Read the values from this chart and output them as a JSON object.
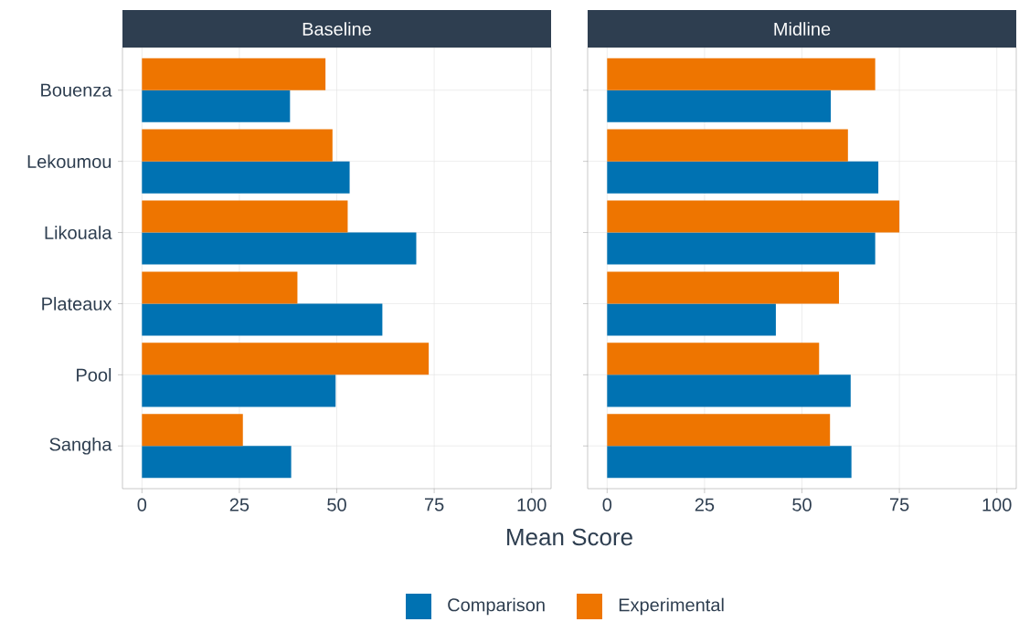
{
  "chart_data": [
    {
      "type": "bar",
      "orientation": "horizontal",
      "title": "Baseline",
      "xlabel": "Mean Score",
      "categories": [
        "Bouenza",
        "Lekoumou",
        "Likouala",
        "Plateaux",
        "Pool",
        "Sangha"
      ],
      "series": [
        {
          "name": "Comparison",
          "color": "#0072b2",
          "values": [
            38.0,
            53.3,
            70.4,
            61.7,
            49.7,
            38.3
          ]
        },
        {
          "name": "Experimental",
          "color": "#ee7500",
          "values": [
            47.1,
            48.9,
            52.8,
            39.9,
            73.6,
            25.9
          ]
        }
      ],
      "xlim": [
        -5,
        105
      ],
      "xticks": [
        0,
        25,
        50,
        75,
        100
      ],
      "grid": true,
      "legend": "bottom"
    },
    {
      "type": "bar",
      "orientation": "horizontal",
      "title": "Midline",
      "categories": [
        null,
        null,
        null,
        null,
        null,
        null
      ],
      "series": [
        {
          "color": "#0072b2",
          "values": [
            57.4,
            69.6,
            68.8,
            43.3,
            62.5,
            62.7
          ]
        },
        {
          "color": "#ee7500",
          "values": [
            68.8,
            61.8,
            75.0,
            59.5,
            54.4,
            57.2
          ]
        }
      ],
      "xlim": [
        -5,
        105
      ],
      "xticks": [
        0,
        25,
        50,
        75,
        100
      ],
      "grid": true,
      "tick_labels": "x"
    }
  ]
}
